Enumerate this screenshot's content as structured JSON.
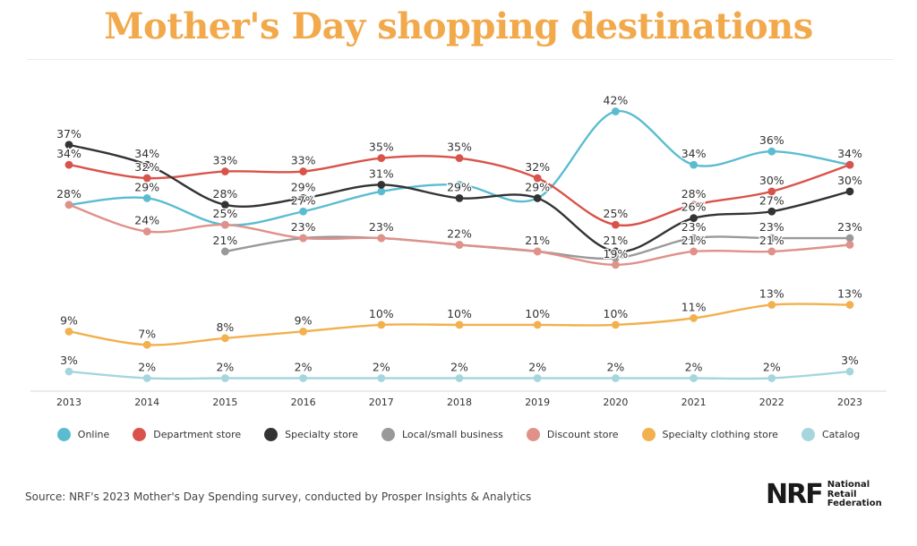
{
  "header": {
    "title": "Mother's Day shopping destinations"
  },
  "footer": {
    "source": "Source: NRF's 2023 Mother's Day Spending survey, conducted by Prosper Insights & Analytics"
  },
  "logo": {
    "mark": "NRF",
    "line1": "National",
    "line2": "Retail",
    "line3": "Federation"
  },
  "chart_data": {
    "type": "line",
    "title": "Mother's Day shopping destinations",
    "xlabel": "",
    "ylabel": "",
    "value_suffix": "%",
    "grid": false,
    "legend_position": "bottom",
    "x": [
      "2013",
      "2014",
      "2015",
      "2016",
      "2017",
      "2018",
      "2019",
      "2020",
      "2021",
      "2022",
      "2023"
    ],
    "series": [
      {
        "name": "Online",
        "color": "#5bbcd0",
        "values": [
          28,
          29,
          25,
          27,
          30,
          31,
          29,
          42,
          34,
          36,
          34
        ],
        "labels": [
          "28%",
          "29%",
          "25%",
          "27%",
          "",
          "",
          "29%",
          "42%",
          "34%",
          "36%",
          ""
        ]
      },
      {
        "name": "Department store",
        "color": "#d9534a",
        "values": [
          34,
          32,
          33,
          33,
          35,
          35,
          32,
          25,
          28,
          30,
          34
        ],
        "labels": [
          "34%",
          "32%",
          "33%",
          "33%",
          "35%",
          "35%",
          "32%",
          "25%",
          "28%",
          "30%",
          "34%"
        ]
      },
      {
        "name": "Specialty store",
        "color": "#333333",
        "values": [
          37,
          34,
          28,
          29,
          31,
          29,
          29,
          21,
          26,
          27,
          30
        ],
        "labels": [
          "37%",
          "34%",
          "28%",
          "29%",
          "31%",
          "29%",
          "",
          "21%",
          "26%",
          "27%",
          "30%"
        ]
      },
      {
        "name": "Local/small business",
        "color": "#999999",
        "values": [
          null,
          null,
          21,
          23,
          23,
          22,
          21,
          20,
          23,
          23,
          23
        ],
        "labels": [
          "",
          "",
          "21%",
          "23%",
          "23%",
          "22%",
          "",
          "",
          "23%",
          "23%",
          "23%"
        ]
      },
      {
        "name": "Discount store",
        "color": "#e0918a",
        "values": [
          28,
          24,
          25,
          23,
          23,
          22,
          21,
          19,
          21,
          21,
          22
        ],
        "labels": [
          "",
          "24%",
          "",
          "",
          "",
          "",
          "21%",
          "19%",
          "21%",
          "21%",
          ""
        ]
      },
      {
        "name": "Specialty clothing store",
        "color": "#f2b04e",
        "values": [
          9,
          7,
          8,
          9,
          10,
          10,
          10,
          10,
          11,
          13,
          13
        ],
        "labels": [
          "9%",
          "7%",
          "8%",
          "9%",
          "10%",
          "10%",
          "10%",
          "10%",
          "11%",
          "13%",
          "13%"
        ]
      },
      {
        "name": "Catalog",
        "color": "#a6d6dd",
        "values": [
          3,
          2,
          2,
          2,
          2,
          2,
          2,
          2,
          2,
          2,
          3
        ],
        "labels": [
          "3%",
          "2%",
          "2%",
          "2%",
          "2%",
          "2%",
          "2%",
          "2%",
          "2%",
          "2%",
          "3%"
        ]
      }
    ]
  }
}
